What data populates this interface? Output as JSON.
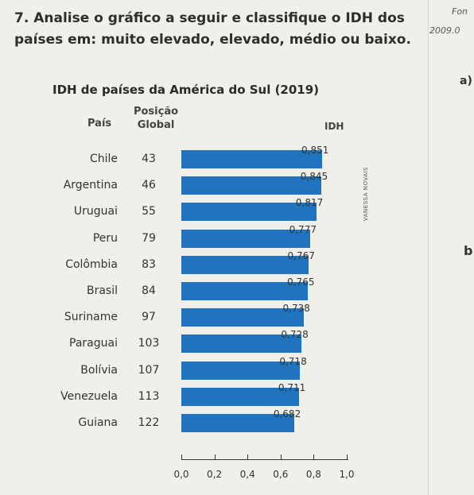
{
  "question": {
    "number": "7.",
    "text": "Analise o gráfico a seguir e classifique o IDH dos países em: muito elevado, elevado, médio ou baixo."
  },
  "side": {
    "top": "Fon",
    "year": "2009.0",
    "a": "a)",
    "b": "b"
  },
  "credit": "VANESSA NOVAIS",
  "chart_data": {
    "type": "bar",
    "orientation": "horizontal",
    "title": "IDH de países da América do Sul (2019)",
    "column_headers": {
      "country": "País",
      "rank": "Posição Global",
      "value": "IDH"
    },
    "categories": [
      "Chile",
      "Argentina",
      "Uruguai",
      "Peru",
      "Colômbia",
      "Brasil",
      "Suriname",
      "Paraguai",
      "Bolívia",
      "Venezuela",
      "Guiana"
    ],
    "ranks": [
      "43",
      "46",
      "55",
      "79",
      "83",
      "84",
      "97",
      "103",
      "107",
      "113",
      "122"
    ],
    "values": [
      0.851,
      0.845,
      0.817,
      0.777,
      0.767,
      0.765,
      0.738,
      0.728,
      0.718,
      0.711,
      0.682
    ],
    "value_labels": [
      "0,851",
      "0,845",
      "0,817",
      "0,777",
      "0,767",
      "0,765",
      "0,738",
      "0,728",
      "0,718",
      "0,711",
      "0,682"
    ],
    "xlim": [
      0,
      1.0
    ],
    "xticks": [
      "0,0",
      "0,2",
      "0,4",
      "0,6",
      "0,8",
      "1,0"
    ],
    "bar_color": "#1f74bd"
  }
}
